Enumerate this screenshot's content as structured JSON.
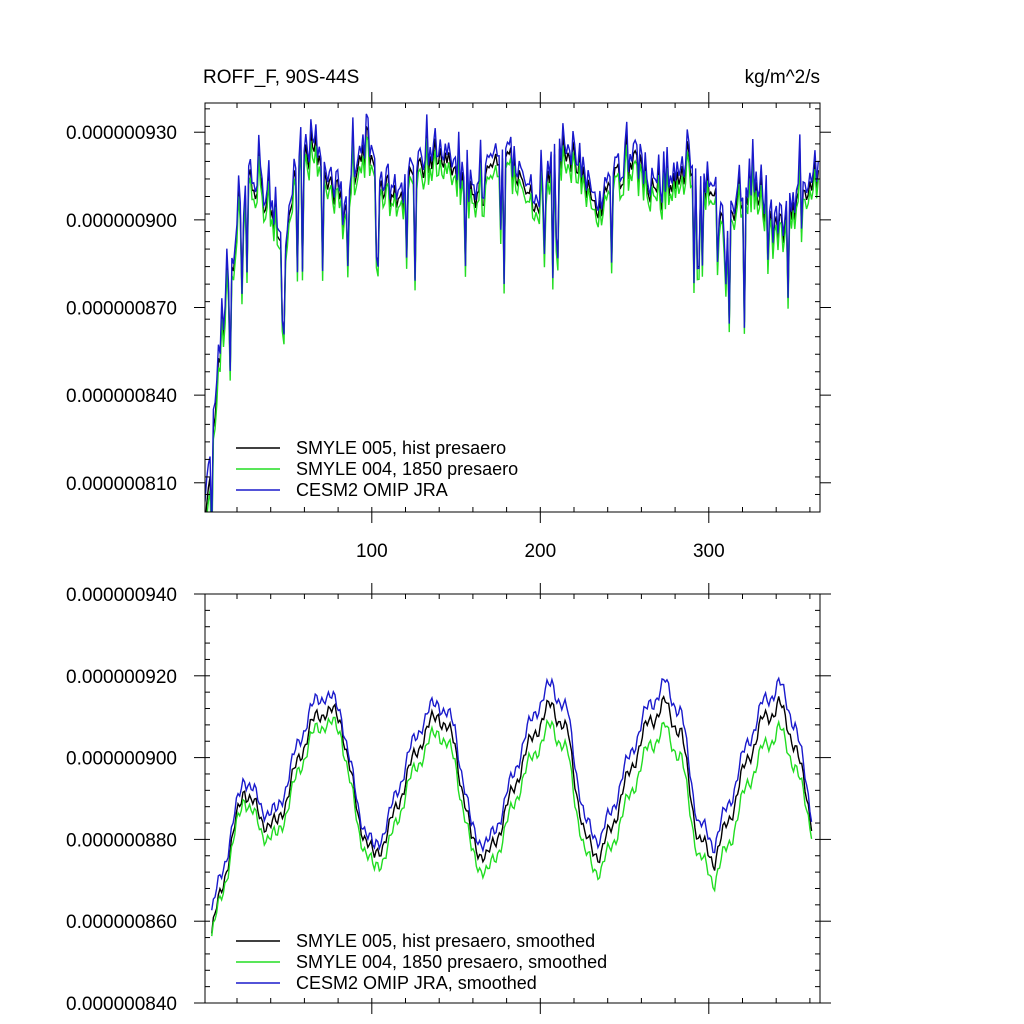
{
  "chart_data": [
    {
      "type": "line",
      "title_left": "ROFF_F, 90S-44S",
      "title_right": "kg/m^2/s",
      "xlabel": "",
      "ylabel": "",
      "xlim": [
        1,
        366
      ],
      "ylim": [
        8e-07,
        9.4e-07
      ],
      "xticks": [
        100,
        200,
        300
      ],
      "xtick_labels": [
        "100",
        "200",
        "300"
      ],
      "yticks": [
        8.1e-07,
        8.4e-07,
        8.7e-07,
        9e-07,
        9.3e-07
      ],
      "ytick_labels": [
        "0.000000810",
        "0.000000840",
        "0.000000870",
        "0.000000900",
        "0.000000930"
      ],
      "x_start": 1,
      "x_end": 365,
      "series": [
        {
          "name": "SMYLE 005, hist presaero",
          "color": "#000000",
          "noise_scale": 0.9,
          "values": [
            8e-07,
            8.55e-07,
            8.95e-07,
            9.15e-07,
            9.05e-07,
            8.9e-07,
            9.18e-07,
            9.25e-07,
            9.12e-07,
            9.08e-07,
            9.22e-07,
            9.15e-07,
            9.05e-07,
            9.12e-07,
            9.18e-07,
            9.25e-07,
            9.15e-07,
            9.05e-07,
            9.12e-07,
            9.22e-07,
            9.15e-07,
            9.05e-07,
            9.15e-07,
            9.25e-07,
            9.15e-07,
            9.05e-07,
            9.12e-07,
            9.2e-07,
            9.15e-07,
            9.05e-07,
            9.12e-07,
            9.2e-07,
            9.1e-07,
            8.95e-07,
            9.1e-07,
            9.08e-07,
            8.95e-07,
            8.98e-07,
            9.12e-07,
            9.15e-07
          ]
        },
        {
          "name": "SMYLE 004, 1850 presaero",
          "color": "#22dd22",
          "noise_scale": 0.92,
          "values": [
            7.95e-07,
            8.52e-07,
            8.92e-07,
            9.12e-07,
            9.02e-07,
            8.87e-07,
            9.15e-07,
            9.21e-07,
            9.09e-07,
            9.05e-07,
            9.18e-07,
            9.12e-07,
            9.02e-07,
            9.09e-07,
            9.14e-07,
            9.21e-07,
            9.12e-07,
            9.02e-07,
            9.08e-07,
            9.18e-07,
            9.12e-07,
            9.02e-07,
            9.11e-07,
            9.21e-07,
            9.12e-07,
            9.02e-07,
            9.09e-07,
            9.16e-07,
            9.12e-07,
            9.02e-07,
            9.09e-07,
            9.16e-07,
            9.07e-07,
            8.92e-07,
            9.07e-07,
            9.05e-07,
            8.92e-07,
            8.95e-07,
            9.09e-07,
            9.12e-07
          ]
        },
        {
          "name": "CESM2 OMIP JRA",
          "color": "#1a1acc",
          "noise_scale": 1.0,
          "values": [
            8.1e-07,
            8.58e-07,
            8.98e-07,
            9.18e-07,
            9.08e-07,
            8.93e-07,
            9.21e-07,
            9.28e-07,
            9.15e-07,
            9.11e-07,
            9.25e-07,
            9.18e-07,
            9.08e-07,
            9.15e-07,
            9.21e-07,
            9.28e-07,
            9.18e-07,
            9.08e-07,
            9.15e-07,
            9.25e-07,
            9.18e-07,
            9.08e-07,
            9.18e-07,
            9.28e-07,
            9.18e-07,
            9.08e-07,
            9.15e-07,
            9.23e-07,
            9.18e-07,
            9.08e-07,
            9.15e-07,
            9.23e-07,
            9.13e-07,
            8.98e-07,
            9.13e-07,
            9.11e-07,
            8.98e-07,
            9.01e-07,
            9.15e-07,
            9.18e-07
          ]
        }
      ]
    },
    {
      "type": "line",
      "title_left": "",
      "title_right": "",
      "xlabel": "",
      "ylabel": "",
      "xlim": [
        1,
        366
      ],
      "ylim": [
        8.4e-07,
        9.4e-07
      ],
      "xticks": [
        100,
        200,
        300
      ],
      "xtick_labels": [
        "",
        "",
        ""
      ],
      "yticks": [
        8.4e-07,
        8.6e-07,
        8.8e-07,
        9e-07,
        9.2e-07,
        9.4e-07
      ],
      "ytick_labels": [
        "0.000000840",
        "0.000000860",
        "0.000000880",
        "0.000000900",
        "0.000000920",
        "0.000000940"
      ],
      "x_start": 5,
      "x_end": 361,
      "series": [
        {
          "name": "SMYLE 005, hist presaero, smoothed",
          "color": "#000000",
          "values": [
            8.57e-07,
            8.75e-07,
            8.93e-07,
            8.85e-07,
            8.83e-07,
            8.95e-07,
            9.07e-07,
            9.12e-07,
            9.09e-07,
            8.86e-07,
            8.75e-07,
            8.83e-07,
            8.95e-07,
            9.05e-07,
            9.11e-07,
            9.03e-07,
            8.8e-07,
            8.75e-07,
            8.85e-07,
            8.97e-07,
            9.07e-07,
            9.13e-07,
            9.05e-07,
            8.8e-07,
            8.76e-07,
            8.87e-07,
            8.99e-07,
            9.09e-07,
            9.13e-07,
            9.05e-07,
            8.8e-07,
            8.75e-07,
            8.86e-07,
            8.99e-07,
            9.09e-07,
            9.13e-07,
            9.03e-07,
            8.85e-07
          ]
        },
        {
          "name": "SMYLE 004, 1850 presaero, smoothed",
          "color": "#22dd22",
          "values": [
            8.56e-07,
            8.73e-07,
            8.91e-07,
            8.82e-07,
            8.8e-07,
            8.92e-07,
            9.04e-07,
            9.09e-07,
            9.06e-07,
            8.83e-07,
            8.72e-07,
            8.79e-07,
            8.92e-07,
            9.01e-07,
            9.07e-07,
            8.99e-07,
            8.77e-07,
            8.71e-07,
            8.81e-07,
            8.93e-07,
            9.02e-07,
            9.08e-07,
            9e-07,
            8.76e-07,
            8.72e-07,
            8.82e-07,
            8.93e-07,
            9.03e-07,
            9.07e-07,
            8.99e-07,
            8.76e-07,
            8.7e-07,
            8.8e-07,
            8.93e-07,
            9.02e-07,
            9.07e-07,
            8.98e-07,
            8.83e-07
          ]
        },
        {
          "name": "CESM2 OMIP JRA, smoothed",
          "color": "#1a1acc",
          "values": [
            8.62e-07,
            8.78e-07,
            8.96e-07,
            8.88e-07,
            8.86e-07,
            8.99e-07,
            9.11e-07,
            9.16e-07,
            9.11e-07,
            8.88e-07,
            8.77e-07,
            8.86e-07,
            8.99e-07,
            9.09e-07,
            9.14e-07,
            9.07e-07,
            8.83e-07,
            8.78e-07,
            8.88e-07,
            9.01e-07,
            9.12e-07,
            9.18e-07,
            9.1e-07,
            8.84e-07,
            8.8e-07,
            8.91e-07,
            9.03e-07,
            9.13e-07,
            9.18e-07,
            9.1e-07,
            8.84e-07,
            8.79e-07,
            8.9e-07,
            9.03e-07,
            9.13e-07,
            9.18e-07,
            9.08e-07,
            8.87e-07
          ]
        }
      ]
    }
  ]
}
